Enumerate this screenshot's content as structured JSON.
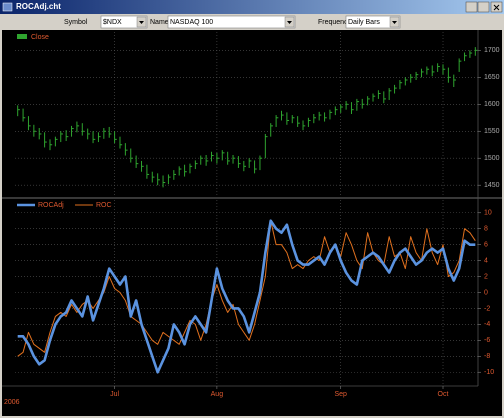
{
  "window": {
    "title": "ROCAdj.cht"
  },
  "toolbar": {
    "symbol_label": "Symbol",
    "symbol": "$NDX",
    "name_label": "Name",
    "name": "NASDAQ 100",
    "frequency_label": "Frequency",
    "frequency": "Daily Bars"
  },
  "chart_data": [
    {
      "type": "hlc",
      "series": [
        {
          "name": "Close",
          "color": "#2fa52f",
          "high": [
            1598,
            1592,
            1578,
            1562,
            1556,
            1548,
            1535,
            1540,
            1550,
            1552,
            1560,
            1568,
            1565,
            1555,
            1550,
            1548,
            1556,
            1558,
            1550,
            1540,
            1528,
            1518,
            1505,
            1495,
            1488,
            1475,
            1472,
            1468,
            1470,
            1478,
            1485,
            1488,
            1490,
            1496,
            1505,
            1506,
            1512,
            1510,
            1515,
            1512,
            1506,
            1504,
            1495,
            1500,
            1496,
            1505,
            1545,
            1565,
            1580,
            1588,
            1585,
            1580,
            1578,
            1570,
            1575,
            1582,
            1586,
            1585,
            1590,
            1596,
            1600,
            1606,
            1604,
            1610,
            1610,
            1615,
            1620,
            1626,
            1624,
            1630,
            1636,
            1645,
            1650,
            1656,
            1660,
            1666,
            1670,
            1672,
            1676,
            1674,
            1668,
            1655,
            1685,
            1696,
            1700,
            1706
          ],
          "low": [
            1578,
            1568,
            1552,
            1540,
            1535,
            1520,
            1515,
            1522,
            1530,
            1532,
            1540,
            1548,
            1542,
            1535,
            1528,
            1530,
            1536,
            1538,
            1528,
            1518,
            1505,
            1492,
            1482,
            1475,
            1462,
            1455,
            1450,
            1446,
            1452,
            1460,
            1468,
            1466,
            1472,
            1480,
            1488,
            1486,
            1494,
            1490,
            1496,
            1488,
            1490,
            1482,
            1476,
            1482,
            1472,
            1478,
            1500,
            1540,
            1558,
            1570,
            1562,
            1565,
            1558,
            1552,
            1558,
            1565,
            1570,
            1568,
            1572,
            1580,
            1584,
            1590,
            1582,
            1588,
            1592,
            1598,
            1605,
            1610,
            1602,
            1608,
            1620,
            1628,
            1635,
            1640,
            1645,
            1650,
            1655,
            1652,
            1660,
            1655,
            1640,
            1632,
            1660,
            1680,
            1686,
            1690
          ],
          "close": [
            1590,
            1575,
            1560,
            1550,
            1545,
            1530,
            1525,
            1535,
            1545,
            1540,
            1555,
            1560,
            1550,
            1545,
            1535,
            1540,
            1550,
            1545,
            1535,
            1525,
            1515,
            1500,
            1490,
            1485,
            1470,
            1465,
            1460,
            1455,
            1465,
            1470,
            1480,
            1475,
            1485,
            1490,
            1500,
            1495,
            1505,
            1500,
            1510,
            1495,
            1500,
            1490,
            1485,
            1495,
            1480,
            1500,
            1540,
            1560,
            1575,
            1580,
            1570,
            1575,
            1565,
            1560,
            1570,
            1575,
            1580,
            1575,
            1585,
            1590,
            1595,
            1600,
            1590,
            1605,
            1600,
            1610,
            1615,
            1620,
            1610,
            1625,
            1630,
            1640,
            1645,
            1650,
            1655,
            1660,
            1665,
            1660,
            1670,
            1665,
            1650,
            1645,
            1680,
            1690,
            1695,
            1700
          ]
        }
      ],
      "xlim": [
        -0.5,
        85.5
      ],
      "ylim": [
        1430,
        1734
      ],
      "yticks": [
        1450,
        1500,
        1550,
        1600,
        1650,
        1700
      ],
      "grid": true
    },
    {
      "type": "line",
      "series": [
        {
          "name": "ROCAdj",
          "color": "#5b93e0",
          "values": [
            -5.5,
            -5.5,
            -6.5,
            -8,
            -9,
            -8.5,
            -6,
            -4,
            -3,
            -2.5,
            -1,
            -2,
            -3,
            -0.5,
            -3.5,
            -1.5,
            0.5,
            3,
            2,
            1,
            2,
            -3,
            -1,
            -4,
            -6,
            -8,
            -10,
            -8.5,
            -7,
            -4,
            -5,
            -6.5,
            -4,
            -3,
            -4,
            -5,
            -1,
            3,
            0.5,
            -1,
            -2,
            -2,
            -3,
            -5,
            -2.5,
            0,
            5,
            9,
            8,
            7.5,
            8.5,
            6,
            4,
            3.5,
            3.5,
            4,
            4.5,
            3.5,
            5,
            6,
            4,
            2.5,
            1.5,
            1,
            4,
            4.5,
            5,
            4.5,
            3.5,
            2.5,
            4,
            5,
            5.5,
            4.5,
            3.5,
            4,
            5,
            5.5,
            5,
            5.5,
            3,
            1.5,
            3,
            6.5,
            6,
            6
          ]
        },
        {
          "name": "ROC",
          "color": "#e0701e",
          "values": [
            -8,
            -7.5,
            -5,
            -6.5,
            -7,
            -7.5,
            -5,
            -3,
            -2.5,
            -3,
            -1.5,
            -2.5,
            -1.5,
            -1,
            -2,
            -1,
            0,
            2,
            0.5,
            0,
            -1,
            -3,
            -3.5,
            -4,
            -5,
            -6,
            -6.5,
            -5,
            -5.5,
            -6,
            -6.5,
            -5,
            -3.5,
            -4,
            -6,
            -4,
            -1,
            1,
            -1,
            -2.5,
            -1.5,
            -4,
            -5,
            -6,
            -4,
            -1,
            2,
            9,
            6,
            6,
            5,
            3,
            3.5,
            3,
            4,
            4.5,
            4,
            7,
            5,
            6,
            4.5,
            7.5,
            6,
            4,
            3,
            7.5,
            5,
            4,
            3.5,
            7,
            4.5,
            5,
            3,
            7,
            5,
            4,
            8,
            5,
            3.5,
            6,
            2,
            2.5,
            4,
            8,
            7.5,
            6.5
          ]
        }
      ],
      "xlim": [
        -0.5,
        85.5
      ],
      "xticks": [
        {
          "value": 18,
          "label": "Jul"
        },
        {
          "value": 37,
          "label": "Aug"
        },
        {
          "value": 60,
          "label": "Sep"
        },
        {
          "value": 79,
          "label": "Oct"
        }
      ],
      "year_label": "2006",
      "ylim": [
        -11.6,
        11.6
      ],
      "yticks": [
        -10,
        -8,
        -6,
        -4,
        -2,
        0,
        2,
        4,
        6,
        8,
        10
      ],
      "grid": true
    }
  ]
}
